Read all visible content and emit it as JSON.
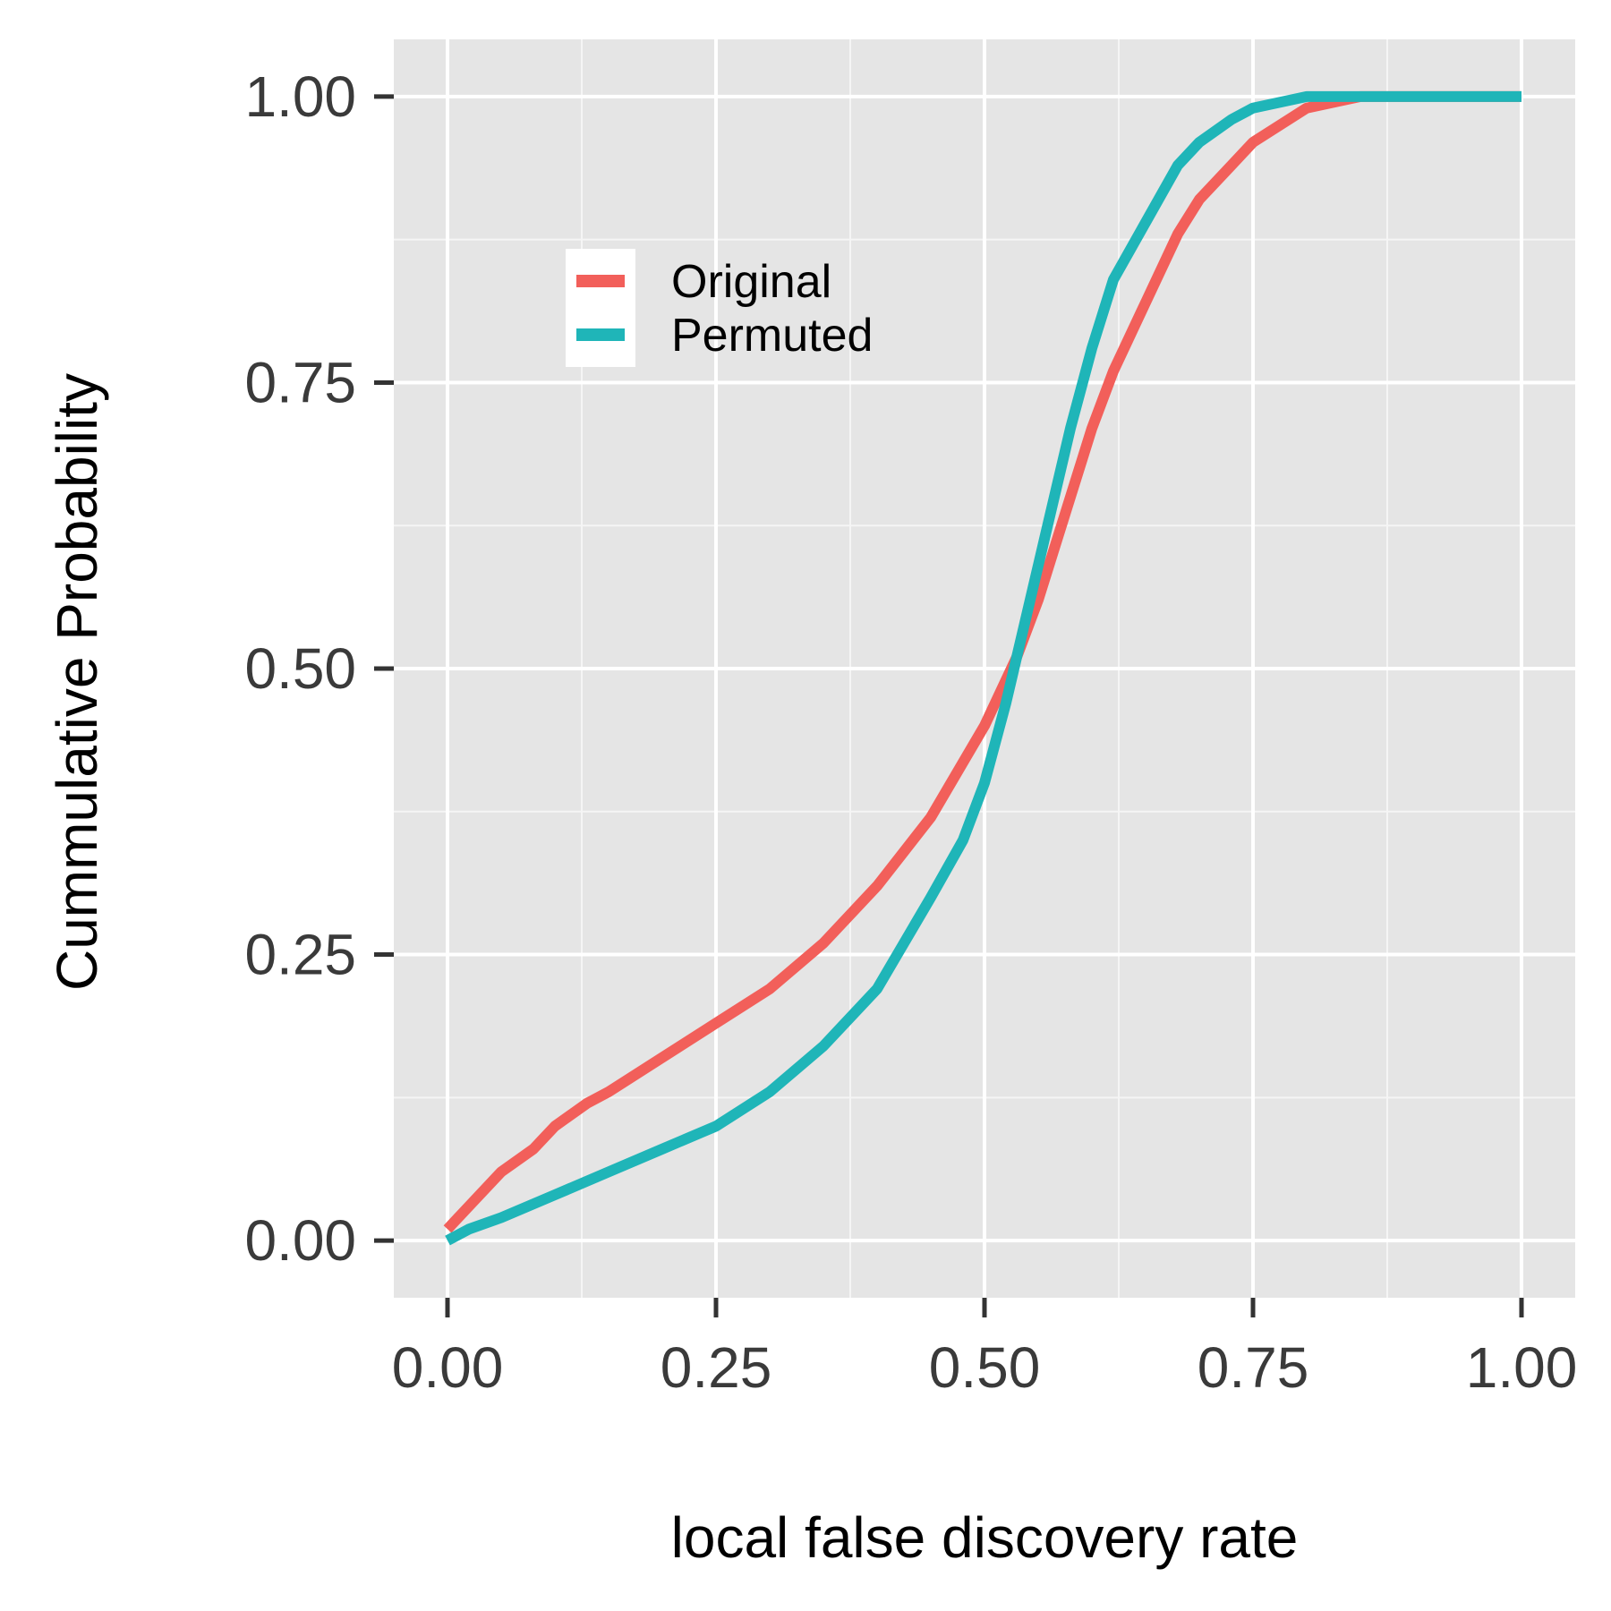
{
  "chart_data": {
    "type": "line",
    "xlabel": "local false discovery rate",
    "ylabel": "Cummulative Probability",
    "xlim": [
      -0.05,
      1.05
    ],
    "ylim": [
      -0.05,
      1.05
    ],
    "x_ticks": [
      0,
      0.25,
      0.5,
      0.75,
      1
    ],
    "y_ticks": [
      0,
      0.25,
      0.5,
      0.75,
      1
    ],
    "x_tick_labels": [
      "0.00",
      "0.25",
      "0.50",
      "0.75",
      "1.00"
    ],
    "y_tick_labels": [
      "0.00",
      "0.25",
      "0.50",
      "0.75",
      "1.00"
    ],
    "grid": true,
    "legend_position": "top-left",
    "series": [
      {
        "name": "Original",
        "color": "#F25F5A",
        "x": [
          0,
          0.02,
          0.05,
          0.08,
          0.1,
          0.13,
          0.15,
          0.2,
          0.25,
          0.3,
          0.35,
          0.4,
          0.45,
          0.5,
          0.53,
          0.55,
          0.57,
          0.6,
          0.62,
          0.65,
          0.68,
          0.7,
          0.73,
          0.75,
          0.8,
          0.85,
          0.9,
          1
        ],
        "y": [
          0.01,
          0.03,
          0.06,
          0.08,
          0.1,
          0.12,
          0.13,
          0.16,
          0.19,
          0.22,
          0.26,
          0.31,
          0.37,
          0.45,
          0.51,
          0.56,
          0.62,
          0.71,
          0.76,
          0.82,
          0.88,
          0.91,
          0.94,
          0.96,
          0.99,
          1,
          1,
          1
        ]
      },
      {
        "name": "Permuted",
        "color": "#1FB5B8",
        "x": [
          0,
          0.02,
          0.05,
          0.1,
          0.15,
          0.2,
          0.25,
          0.3,
          0.35,
          0.4,
          0.45,
          0.48,
          0.5,
          0.52,
          0.54,
          0.56,
          0.58,
          0.6,
          0.62,
          0.65,
          0.68,
          0.7,
          0.73,
          0.75,
          0.8,
          0.85,
          0.9,
          1
        ],
        "y": [
          0,
          0.01,
          0.02,
          0.04,
          0.06,
          0.08,
          0.1,
          0.13,
          0.17,
          0.22,
          0.3,
          0.35,
          0.4,
          0.47,
          0.55,
          0.63,
          0.71,
          0.78,
          0.84,
          0.89,
          0.94,
          0.96,
          0.98,
          0.99,
          1,
          1,
          1,
          1
        ]
      }
    ]
  }
}
